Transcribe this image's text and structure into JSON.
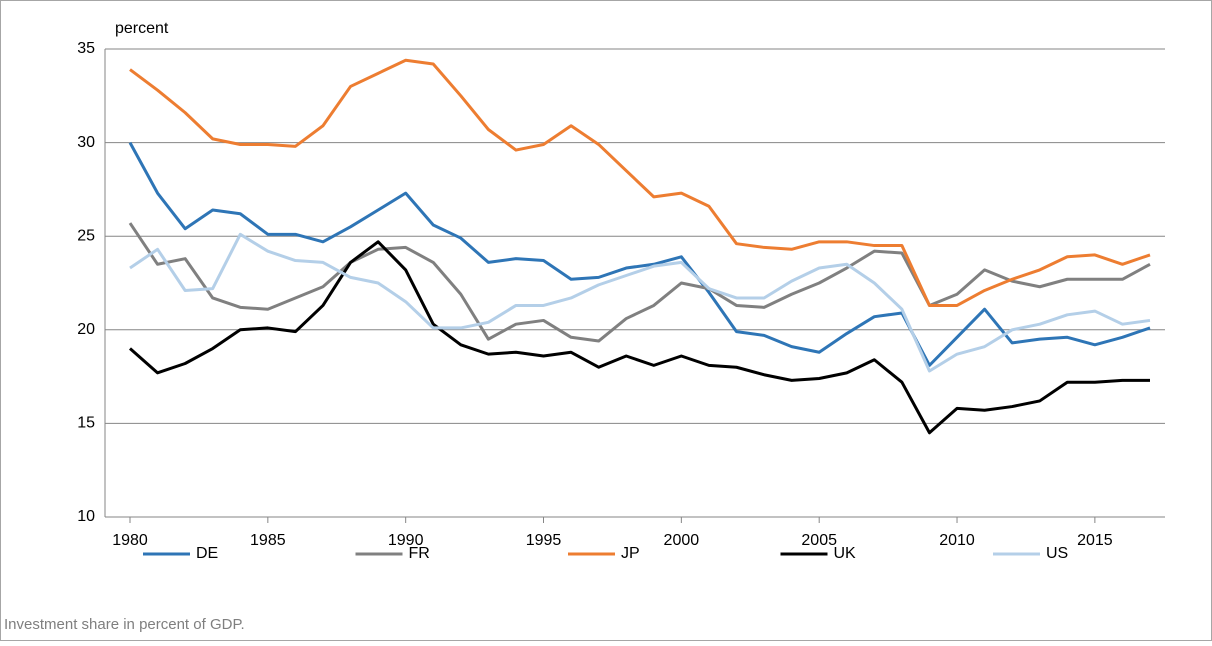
{
  "chart_data": {
    "type": "line",
    "y_label": "percent",
    "caption": "Investment share in percent of GDP.",
    "x": [
      1980,
      1981,
      1982,
      1983,
      1984,
      1985,
      1986,
      1987,
      1988,
      1989,
      1990,
      1991,
      1992,
      1993,
      1994,
      1995,
      1996,
      1997,
      1998,
      1999,
      2000,
      2001,
      2002,
      2003,
      2004,
      2005,
      2006,
      2007,
      2008,
      2009,
      2010,
      2011,
      2012,
      2013,
      2014,
      2015,
      2016,
      2017
    ],
    "xlim": [
      1980,
      2017
    ],
    "xticks": [
      1980,
      1985,
      1990,
      1995,
      2000,
      2005,
      2010,
      2015
    ],
    "ylim": [
      10,
      35
    ],
    "yticks": [
      10,
      15,
      20,
      25,
      30,
      35
    ],
    "grid": true,
    "legend": "bottom",
    "series": [
      {
        "name": "DE",
        "color": "#2e75b6",
        "values": [
          30.0,
          27.3,
          25.4,
          26.4,
          26.2,
          25.1,
          25.1,
          24.7,
          25.5,
          26.4,
          27.3,
          25.6,
          24.9,
          23.6,
          23.8,
          23.7,
          22.7,
          22.8,
          23.3,
          23.5,
          23.9,
          22.0,
          19.9,
          19.7,
          19.1,
          18.8,
          19.8,
          20.7,
          20.9,
          18.1,
          19.6,
          21.1,
          19.3,
          19.5,
          19.6,
          19.2,
          19.6,
          20.1
        ]
      },
      {
        "name": "FR",
        "color": "#808080",
        "values": [
          25.7,
          23.5,
          23.8,
          21.7,
          21.2,
          21.1,
          21.7,
          22.3,
          23.6,
          24.3,
          24.4,
          23.6,
          21.9,
          19.5,
          20.3,
          20.5,
          19.6,
          19.4,
          20.6,
          21.3,
          22.5,
          22.2,
          21.3,
          21.2,
          21.9,
          22.5,
          23.3,
          24.2,
          24.1,
          21.3,
          21.9,
          23.2,
          22.6,
          22.3,
          22.7,
          22.7,
          22.7,
          23.5
        ]
      },
      {
        "name": "JP",
        "color": "#ed7d31",
        "values": [
          33.9,
          32.8,
          31.6,
          30.2,
          29.9,
          29.9,
          29.8,
          30.9,
          33.0,
          33.7,
          34.4,
          34.2,
          32.5,
          30.7,
          29.6,
          29.9,
          30.9,
          29.9,
          28.5,
          27.1,
          27.3,
          26.6,
          24.6,
          24.4,
          24.3,
          24.7,
          24.7,
          24.5,
          24.5,
          21.3,
          21.3,
          22.1,
          22.7,
          23.2,
          23.9,
          24.0,
          23.5,
          24.0
        ]
      },
      {
        "name": "UK",
        "color": "#000000",
        "values": [
          19.0,
          17.7,
          18.2,
          19.0,
          20.0,
          20.1,
          19.9,
          21.3,
          23.6,
          24.7,
          23.2,
          20.3,
          19.2,
          18.7,
          18.8,
          18.6,
          18.8,
          18.0,
          18.6,
          18.1,
          18.6,
          18.1,
          18.0,
          17.6,
          17.3,
          17.4,
          17.7,
          18.4,
          17.2,
          14.5,
          15.8,
          15.7,
          15.9,
          16.2,
          17.2,
          17.2,
          17.3,
          17.3
        ]
      },
      {
        "name": "US",
        "color": "#b4cfe8",
        "values": [
          23.3,
          24.3,
          22.1,
          22.2,
          25.1,
          24.2,
          23.7,
          23.6,
          22.8,
          22.5,
          21.5,
          20.1,
          20.1,
          20.4,
          21.3,
          21.3,
          21.7,
          22.4,
          22.9,
          23.4,
          23.6,
          22.2,
          21.7,
          21.7,
          22.6,
          23.3,
          23.5,
          22.5,
          21.1,
          17.8,
          18.7,
          19.1,
          20.0,
          20.3,
          20.8,
          21.0,
          20.3,
          20.5
        ]
      }
    ]
  }
}
